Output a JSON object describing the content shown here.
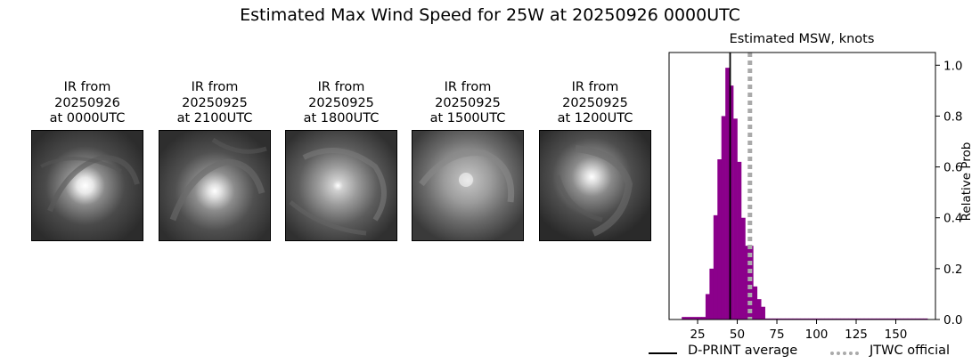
{
  "figure": {
    "title": "Estimated Max Wind Speed for 25W at 20250926 0000UTC"
  },
  "ir_panels": [
    {
      "line1": "IR from",
      "line2": "20250926",
      "line3": "at 0000UTC"
    },
    {
      "line1": "IR from",
      "line2": "20250925",
      "line3": "at 2100UTC"
    },
    {
      "line1": "IR from",
      "line2": "20250925",
      "line3": "at 1800UTC"
    },
    {
      "line1": "IR from",
      "line2": "20250925",
      "line3": "at 1500UTC"
    },
    {
      "line1": "IR from",
      "line2": "20250925",
      "line3": "at 1200UTC"
    }
  ],
  "colors": {
    "bars": "#8b008b",
    "average_line": "#000000",
    "jtwc_line": "#aaaaaa"
  },
  "chart_data": {
    "type": "bar",
    "title": "Estimated MSW, knots",
    "xlabel": "",
    "ylabel": "Relative Prob",
    "xlim": [
      7,
      175
    ],
    "ylim": [
      0,
      1.05
    ],
    "x_ticks": [
      25,
      50,
      75,
      100,
      125,
      150
    ],
    "y_ticks": [
      0.0,
      0.2,
      0.4,
      0.6,
      0.8,
      1.0
    ],
    "y_tick_labels": [
      "0.0",
      "0.2",
      "0.4",
      "0.6",
      "0.8",
      "1.0"
    ],
    "y_axis_side": "right",
    "bin_width": 2.5,
    "bins": [
      {
        "x0": 15.0,
        "value": 0.01
      },
      {
        "x0": 17.5,
        "value": 0.01
      },
      {
        "x0": 20.0,
        "value": 0.01
      },
      {
        "x0": 22.5,
        "value": 0.01
      },
      {
        "x0": 25.0,
        "value": 0.01
      },
      {
        "x0": 27.5,
        "value": 0.01
      },
      {
        "x0": 30.0,
        "value": 0.1
      },
      {
        "x0": 32.5,
        "value": 0.2
      },
      {
        "x0": 35.0,
        "value": 0.41
      },
      {
        "x0": 37.5,
        "value": 0.63
      },
      {
        "x0": 40.0,
        "value": 0.8
      },
      {
        "x0": 42.5,
        "value": 0.99
      },
      {
        "x0": 45.0,
        "value": 0.92
      },
      {
        "x0": 47.5,
        "value": 0.79
      },
      {
        "x0": 50.0,
        "value": 0.62
      },
      {
        "x0": 52.5,
        "value": 0.4
      },
      {
        "x0": 55.0,
        "value": 0.29
      },
      {
        "x0": 57.5,
        "value": 0.29
      },
      {
        "x0": 60.0,
        "value": 0.13
      },
      {
        "x0": 62.5,
        "value": 0.08
      },
      {
        "x0": 65.0,
        "value": 0.05
      },
      {
        "x0": 67.5,
        "value": 0.004
      },
      {
        "x0": 70.0,
        "value": 0.004
      },
      {
        "x0": 72.5,
        "value": 0.004
      },
      {
        "x0": 75.0,
        "value": 0.004
      },
      {
        "x0": 77.5,
        "value": 0.004
      },
      {
        "x0": 80.0,
        "value": 0.004
      },
      {
        "x0": 82.5,
        "value": 0.004
      },
      {
        "x0": 85.0,
        "value": 0.004
      },
      {
        "x0": 87.5,
        "value": 0.004
      },
      {
        "x0": 90.0,
        "value": 0.004
      },
      {
        "x0": 92.5,
        "value": 0.004
      },
      {
        "x0": 95.0,
        "value": 0.004
      },
      {
        "x0": 97.5,
        "value": 0.004
      },
      {
        "x0": 100.0,
        "value": 0.004
      },
      {
        "x0": 102.5,
        "value": 0.004
      },
      {
        "x0": 105.0,
        "value": 0.004
      },
      {
        "x0": 107.5,
        "value": 0.004
      },
      {
        "x0": 110.0,
        "value": 0.004
      },
      {
        "x0": 112.5,
        "value": 0.004
      },
      {
        "x0": 115.0,
        "value": 0.004
      },
      {
        "x0": 117.5,
        "value": 0.004
      },
      {
        "x0": 120.0,
        "value": 0.004
      },
      {
        "x0": 122.5,
        "value": 0.004
      },
      {
        "x0": 125.0,
        "value": 0.004
      },
      {
        "x0": 127.5,
        "value": 0.004
      },
      {
        "x0": 130.0,
        "value": 0.004
      },
      {
        "x0": 132.5,
        "value": 0.004
      },
      {
        "x0": 135.0,
        "value": 0.004
      },
      {
        "x0": 137.5,
        "value": 0.004
      },
      {
        "x0": 140.0,
        "value": 0.004
      },
      {
        "x0": 142.5,
        "value": 0.004
      },
      {
        "x0": 145.0,
        "value": 0.004
      },
      {
        "x0": 147.5,
        "value": 0.004
      },
      {
        "x0": 150.0,
        "value": 0.004
      },
      {
        "x0": 152.5,
        "value": 0.004
      },
      {
        "x0": 155.0,
        "value": 0.004
      },
      {
        "x0": 157.5,
        "value": 0.004
      },
      {
        "x0": 160.0,
        "value": 0.004
      },
      {
        "x0": 162.5,
        "value": 0.004
      },
      {
        "x0": 165.0,
        "value": 0.004
      },
      {
        "x0": 167.5,
        "value": 0.004
      }
    ],
    "reference_lines": [
      {
        "name": "D-PRINT average",
        "x": 45.5,
        "style": "solid"
      },
      {
        "name": "JTWC official",
        "x": 58.0,
        "style": "dotted"
      }
    ],
    "legend": {
      "placement": "bottom-right",
      "entries": [
        "D-PRINT average",
        "JTWC official"
      ]
    }
  }
}
